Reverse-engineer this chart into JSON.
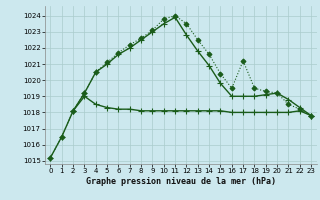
{
  "title": "Graphe pression niveau de la mer (hPa)",
  "bg_color": "#cce8ee",
  "grid_color": "#aacccc",
  "line_color": "#1a5c1a",
  "xlim": [
    -0.5,
    23.5
  ],
  "ylim": [
    1014.8,
    1024.6
  ],
  "yticks": [
    1015,
    1016,
    1017,
    1018,
    1019,
    1020,
    1021,
    1022,
    1023,
    1024
  ],
  "xticks": [
    0,
    1,
    2,
    3,
    4,
    5,
    6,
    7,
    8,
    9,
    10,
    11,
    12,
    13,
    14,
    15,
    16,
    17,
    18,
    19,
    20,
    21,
    22,
    23
  ],
  "series": [
    {
      "x": [
        0,
        1,
        2,
        3,
        4,
        5,
        6,
        7,
        8,
        9,
        10,
        11,
        12,
        13,
        14,
        15,
        16,
        17,
        18,
        19,
        20,
        21,
        22,
        23
      ],
      "y": [
        1015.2,
        1016.5,
        1018.1,
        1019.2,
        1020.5,
        1021.1,
        1021.7,
        1022.2,
        1022.6,
        1023.1,
        1023.8,
        1024.0,
        1023.5,
        1022.5,
        1021.6,
        1020.4,
        1019.5,
        1021.2,
        1019.5,
        1019.3,
        1019.2,
        1018.5,
        1018.2,
        1017.8
      ],
      "linestyle": ":",
      "marker": "D",
      "markersize": 2.5,
      "linewidth": 0.8
    },
    {
      "x": [
        0,
        1,
        2,
        3,
        4,
        5,
        6,
        7,
        8,
        9,
        10,
        11,
        12,
        13,
        14,
        15,
        16,
        17,
        18,
        19,
        20,
        21,
        22,
        23
      ],
      "y": [
        1015.2,
        1016.5,
        1018.1,
        1019.2,
        1020.5,
        1021.0,
        1021.6,
        1022.0,
        1022.5,
        1023.0,
        1023.5,
        1023.9,
        1022.8,
        1021.8,
        1020.9,
        1019.8,
        1019.0,
        1019.0,
        1019.0,
        1019.1,
        1019.2,
        1018.8,
        1018.3,
        1017.8
      ],
      "linestyle": "-",
      "marker": "+",
      "markersize": 4,
      "linewidth": 1.0
    },
    {
      "x": [
        2,
        3,
        4,
        5,
        6,
        7,
        8,
        9,
        10,
        11,
        12,
        13,
        14,
        15,
        16,
        17,
        18,
        19,
        20,
        21,
        22,
        23
      ],
      "y": [
        1018.1,
        1019.0,
        1018.5,
        1018.3,
        1018.2,
        1018.2,
        1018.1,
        1018.1,
        1018.1,
        1018.1,
        1018.1,
        1018.1,
        1018.1,
        1018.1,
        1018.0,
        1018.0,
        1018.0,
        1018.0,
        1018.0,
        1018.0,
        1018.1,
        1017.8
      ],
      "linestyle": "-",
      "marker": "+",
      "markersize": 4,
      "linewidth": 1.0
    }
  ]
}
